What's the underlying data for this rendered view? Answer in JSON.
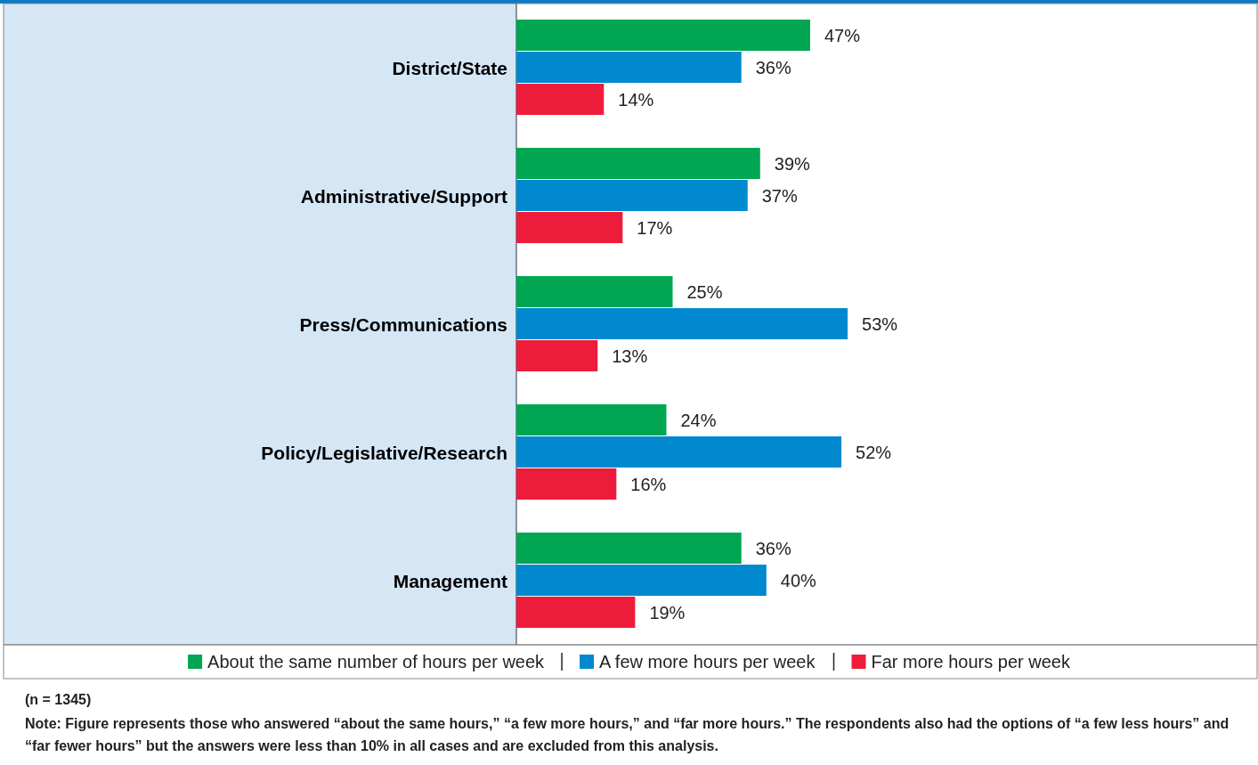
{
  "chart_data": {
    "type": "bar",
    "orientation": "horizontal",
    "categories": [
      "District/State",
      "Administrative/Support",
      "Press/Communications",
      "Policy/Legislative/Research",
      "Management"
    ],
    "series": [
      {
        "name": "About the same number of hours per week",
        "color": "#00a651",
        "values": [
          47,
          39,
          25,
          24,
          36
        ],
        "value_labels": [
          "47%",
          "39%",
          "25%",
          "24%",
          "36%"
        ]
      },
      {
        "name": "A few more hours per week",
        "color": "#0089cf",
        "values": [
          36,
          37,
          53,
          52,
          40
        ],
        "value_labels": [
          "36%",
          "37%",
          "53%",
          "52%",
          "40%"
        ]
      },
      {
        "name": "Far more hours per week",
        "color": "#ed1c3a",
        "values": [
          14,
          17,
          13,
          16,
          19
        ],
        "value_labels": [
          "14%",
          "17%",
          "13%",
          "16%",
          "19%"
        ]
      }
    ],
    "legend": "bottom",
    "annotations": [
      "(n = 1345)",
      "Note: Figure represents those who answered “about the same hours,” “a few more hours,” and “far more hours.” The respondents also had the options of “a few less hours” and “far fewer hours” but the answers were less than 10% in all cases and are excluded from this analysis."
    ]
  }
}
